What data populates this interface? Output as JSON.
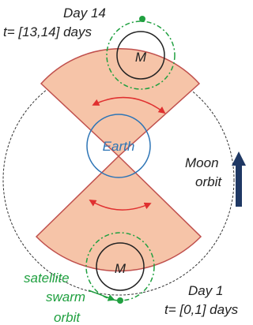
{
  "labels": {
    "top_day": "Day 14",
    "top_time": "t= [13,14] days",
    "earth": "Earth",
    "moon_top": "M",
    "moon_bottom": "M",
    "moon_orbit_1": "Moon",
    "moon_orbit_2": "orbit",
    "bottom_day": "Day 1",
    "bottom_time": "t= [0,1] days",
    "swarm_1": "satellite",
    "swarm_2": "swarm",
    "swarm_3": "orbit"
  }
}
